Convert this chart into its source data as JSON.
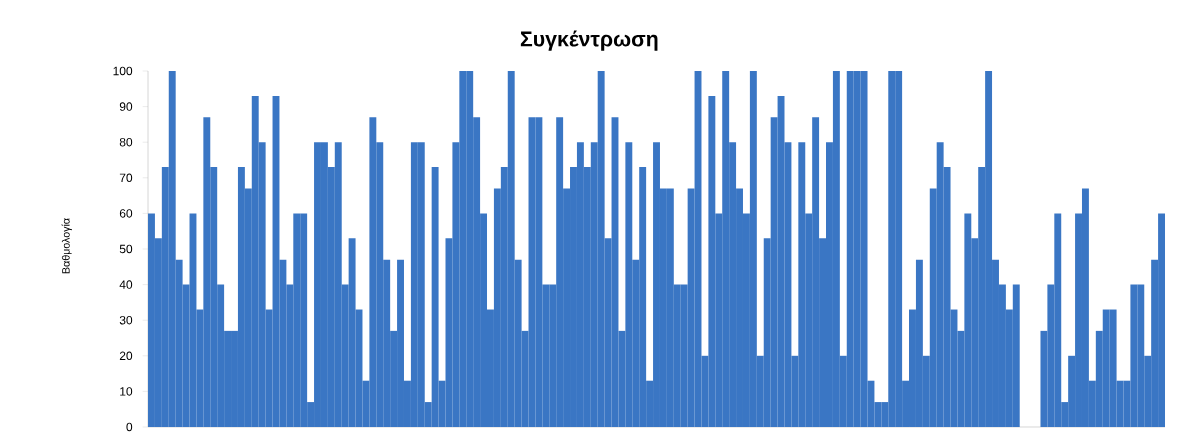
{
  "chart_data": {
    "type": "bar",
    "title": "Συγκέντρωση",
    "ylabel": "Βαθμολογία",
    "color": "#3a76c4",
    "ylim": [
      0,
      100
    ],
    "yticks": [
      0,
      10,
      20,
      30,
      40,
      50,
      60,
      70,
      80,
      90,
      100
    ],
    "tick_labels": "y",
    "categories": [
      null,
      null,
      null,
      null,
      null,
      null,
      null,
      null,
      null,
      null,
      null,
      null,
      null,
      null,
      null,
      null,
      null,
      null,
      null,
      null,
      null,
      null,
      null,
      null,
      null,
      null,
      null,
      null,
      null,
      null,
      null,
      null,
      null,
      null,
      null,
      null,
      null,
      null,
      null,
      null,
      null,
      null,
      null,
      null,
      null,
      null,
      null,
      null,
      null,
      null,
      null,
      null,
      null,
      null,
      null,
      null,
      null,
      null,
      null,
      null,
      null,
      null,
      null,
      null,
      null,
      null,
      null,
      null,
      null,
      null,
      null,
      null,
      null,
      null,
      null,
      null,
      null,
      null,
      null,
      null,
      null,
      null,
      null,
      null,
      null,
      null,
      null,
      null,
      null,
      null,
      null,
      null,
      null,
      null,
      null,
      null,
      null,
      null,
      null,
      null,
      null,
      null,
      null,
      null,
      null,
      null,
      null,
      null,
      null,
      null,
      null,
      null,
      null,
      null,
      null,
      null,
      null,
      null,
      null,
      null,
      null,
      null,
      null,
      null,
      null,
      null,
      null,
      null,
      null,
      null,
      null,
      null,
      null,
      null,
      null,
      null,
      null,
      null,
      null,
      null,
      null,
      null,
      null,
      null,
      null,
      null,
      null
    ],
    "values": [
      60,
      53,
      73,
      100,
      47,
      40,
      60,
      33,
      87,
      73,
      40,
      27,
      27,
      73,
      67,
      93,
      80,
      33,
      93,
      47,
      40,
      60,
      60,
      7,
      80,
      80,
      73,
      80,
      40,
      53,
      33,
      13,
      87,
      80,
      47,
      27,
      47,
      13,
      80,
      80,
      7,
      73,
      13,
      53,
      80,
      100,
      100,
      87,
      60,
      33,
      67,
      73,
      100,
      47,
      27,
      87,
      87,
      40,
      40,
      87,
      67,
      73,
      80,
      73,
      80,
      100,
      53,
      87,
      27,
      80,
      47,
      73,
      13,
      80,
      67,
      67,
      40,
      40,
      67,
      100,
      20,
      93,
      60,
      100,
      80,
      67,
      60,
      100,
      20,
      53,
      87,
      93,
      80,
      20,
      80,
      60,
      87,
      53,
      80,
      100,
      20,
      100,
      100,
      100,
      13,
      7,
      7,
      100,
      100,
      13,
      33,
      47,
      20,
      67,
      80,
      73,
      33,
      27,
      60,
      53,
      73,
      100,
      47,
      40,
      33,
      40,
      null,
      null,
      null,
      27,
      40,
      60,
      7,
      20,
      60,
      67,
      13,
      27,
      33,
      33,
      13,
      13,
      40,
      40,
      20,
      47,
      60
    ]
  }
}
